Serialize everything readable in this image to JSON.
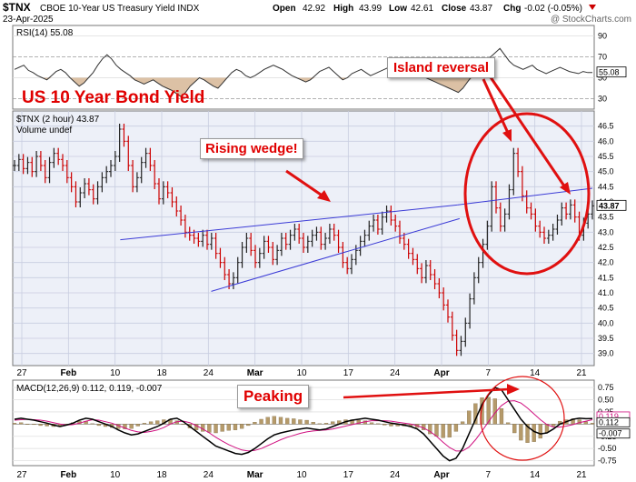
{
  "header": {
    "symbol": "$TNX",
    "name": "CBOE 10-Year US Treasury Yield INDX",
    "date": "23-Apr-2025",
    "open_label": "Open",
    "open": "42.92",
    "high_label": "High",
    "high": "43.99",
    "low_label": "Low",
    "low": "42.61",
    "close_label": "Close",
    "close": "43.87",
    "chg_label": "Chg",
    "chg": "-0.02 (-0.05%)",
    "watermark": "@ StockCharts.com"
  },
  "annotations": {
    "title": "US 10 Year Bond  Yield",
    "rising_wedge": "Rising wedge!",
    "island_reversal": "Island  reversal",
    "peaking": "Peaking"
  },
  "colors": {
    "price": "#cc0000",
    "price_up": "#222222",
    "wedge": "#3b3bd6",
    "annotation": "#e00000",
    "macd": "#000000",
    "signal": "#d01080",
    "hist": "#b59a6a",
    "rsi": "#333333"
  },
  "chart_data": [
    {
      "type": "line",
      "panel": "RSI",
      "label": "RSI(14) 55.08",
      "last": 55.08,
      "yticks": [
        30,
        50,
        70,
        90
      ],
      "ylim": [
        20,
        100
      ],
      "overbought": 70,
      "oversold": 30,
      "values": [
        58,
        60,
        62,
        57,
        55,
        52,
        50,
        48,
        52,
        56,
        58,
        55,
        50,
        46,
        42,
        45,
        50,
        55,
        62,
        68,
        72,
        68,
        62,
        58,
        55,
        52,
        48,
        46,
        44,
        46,
        48,
        45,
        42,
        40,
        38,
        35,
        32,
        36,
        42,
        46,
        50,
        48,
        45,
        42,
        40,
        45,
        50,
        55,
        58,
        56,
        52,
        50,
        52,
        55,
        58,
        60,
        62,
        60,
        58,
        55,
        52,
        50,
        48,
        46,
        48,
        52,
        56,
        58,
        60,
        56,
        52,
        48,
        50,
        54,
        56,
        58,
        55,
        52,
        54,
        56,
        58,
        60,
        62,
        60,
        58,
        56,
        55,
        54,
        52,
        50,
        48,
        46,
        44,
        42,
        40,
        38,
        36,
        40,
        46,
        52,
        58,
        62,
        66,
        70,
        74,
        78,
        72,
        66,
        62,
        60,
        58,
        60,
        62,
        58,
        56,
        54,
        56,
        58,
        60,
        58,
        56,
        55,
        54,
        56,
        55,
        55.08
      ]
    },
    {
      "type": "line",
      "panel": "price",
      "label": "$TNX (2 hour) 43.87",
      "volume_label": "Volume undef",
      "last": 43.87,
      "ylim": [
        38.6,
        47.0
      ],
      "yticks": [
        39.0,
        39.5,
        40.0,
        40.5,
        41.0,
        41.5,
        42.0,
        42.5,
        43.0,
        43.5,
        44.0,
        44.5,
        45.0,
        45.5,
        46.0,
        46.5
      ],
      "x_tick_labels": [
        "27",
        "Feb",
        "10",
        "18",
        "24",
        "Mar",
        "10",
        "17",
        "24",
        "Apr",
        "7",
        "14",
        "21"
      ],
      "values": [
        45.2,
        45.4,
        45.1,
        45.3,
        45.0,
        45.5,
        45.2,
        44.8,
        45.3,
        45.6,
        45.4,
        45.2,
        44.8,
        44.5,
        44.0,
        44.3,
        44.6,
        44.4,
        44.1,
        44.5,
        44.8,
        45.0,
        45.2,
        45.5,
        46.4,
        46.0,
        45.2,
        44.5,
        44.8,
        45.3,
        45.6,
        45.2,
        44.6,
        44.1,
        44.5,
        44.3,
        44.0,
        43.7,
        43.4,
        43.0,
        42.9,
        42.8,
        42.7,
        42.9,
        42.6,
        42.8,
        42.3,
        42.0,
        41.6,
        41.3,
        41.5,
        42.0,
        42.5,
        42.8,
        42.4,
        42.0,
        42.3,
        42.7,
        42.5,
        42.1,
        42.4,
        42.8,
        42.6,
        42.9,
        43.1,
        42.8,
        42.5,
        42.7,
        42.9,
        43.0,
        42.6,
        42.8,
        43.1,
        42.9,
        42.5,
        42.0,
        41.8,
        42.1,
        42.4,
        42.7,
        42.9,
        43.2,
        43.4,
        43.1,
        43.5,
        43.7,
        43.4,
        43.2,
        42.8,
        42.6,
        42.3,
        42.1,
        41.8,
        41.5,
        41.9,
        41.6,
        41.3,
        41.0,
        40.6,
        40.2,
        39.6,
        39.1,
        39.4,
        40.0,
        40.8,
        41.5,
        42.0,
        42.6,
        43.2,
        44.5,
        43.8,
        43.2,
        43.6,
        44.4,
        45.6,
        45.0,
        44.2,
        43.8,
        43.6,
        43.2,
        43.0,
        42.8,
        42.9,
        43.1,
        43.4,
        43.8,
        43.6,
        43.9,
        43.5,
        42.9,
        43.3,
        43.6,
        43.87
      ],
      "wedge": {
        "upper": [
          [
            43,
            42.75
          ],
          [
            180,
            43.9
          ]
        ],
        "lower": [
          [
            80,
            41.05
          ],
          [
            181,
            43.45
          ]
        ],
        "extension": [
          [
            180,
            43.9
          ],
          [
            235,
            44.45
          ]
        ]
      }
    },
    {
      "type": "line",
      "panel": "MACD",
      "label": "MACD(12,26,9) 0.112, 0.119, -0.007",
      "series": [
        {
          "name": "MACD",
          "last": 0.112
        },
        {
          "name": "signal",
          "last": 0.119
        },
        {
          "name": "histogram",
          "last": -0.007
        }
      ],
      "ylim": [
        -0.85,
        0.9
      ],
      "yticks": [
        -0.75,
        -0.5,
        -0.25,
        0.0,
        0.25,
        0.5,
        0.75
      ],
      "macd": [
        0.1,
        0.12,
        0.1,
        0.08,
        0.05,
        0.02,
        -0.02,
        -0.05,
        -0.02,
        0.02,
        0.08,
        0.12,
        0.1,
        0.05,
        0.0,
        -0.05,
        -0.12,
        -0.18,
        -0.22,
        -0.2,
        -0.15,
        -0.1,
        -0.05,
        0.02,
        0.1,
        0.12,
        0.05,
        -0.05,
        -0.15,
        -0.25,
        -0.35,
        -0.45,
        -0.5,
        -0.55,
        -0.6,
        -0.62,
        -0.58,
        -0.5,
        -0.4,
        -0.3,
        -0.22,
        -0.18,
        -0.15,
        -0.12,
        -0.1,
        -0.08,
        -0.1,
        -0.12,
        -0.1,
        -0.05,
        0.0,
        0.05,
        0.08,
        0.1,
        0.12,
        0.1,
        0.08,
        0.05,
        0.02,
        0.0,
        -0.02,
        -0.05,
        -0.1,
        -0.2,
        -0.35,
        -0.5,
        -0.65,
        -0.75,
        -0.7,
        -0.5,
        -0.2,
        0.1,
        0.4,
        0.6,
        0.75,
        0.7,
        0.5,
        0.3,
        0.1,
        -0.05,
        -0.15,
        -0.2,
        -0.18,
        -0.1,
        0.0,
        0.05,
        0.1,
        0.12,
        0.11,
        0.112
      ],
      "signal": [
        0.08,
        0.09,
        0.1,
        0.09,
        0.08,
        0.06,
        0.03,
        0.0,
        -0.02,
        -0.01,
        0.02,
        0.06,
        0.09,
        0.08,
        0.05,
        0.02,
        -0.03,
        -0.08,
        -0.13,
        -0.16,
        -0.17,
        -0.15,
        -0.12,
        -0.07,
        0.0,
        0.05,
        0.06,
        0.03,
        -0.03,
        -0.1,
        -0.18,
        -0.27,
        -0.35,
        -0.42,
        -0.48,
        -0.53,
        -0.55,
        -0.54,
        -0.5,
        -0.44,
        -0.38,
        -0.32,
        -0.27,
        -0.23,
        -0.19,
        -0.16,
        -0.14,
        -0.13,
        -0.12,
        -0.1,
        -0.07,
        -0.04,
        -0.01,
        0.02,
        0.05,
        0.07,
        0.07,
        0.07,
        0.06,
        0.04,
        0.02,
        0.0,
        -0.03,
        -0.08,
        -0.15,
        -0.25,
        -0.37,
        -0.48,
        -0.55,
        -0.55,
        -0.47,
        -0.32,
        -0.14,
        0.05,
        0.23,
        0.38,
        0.47,
        0.48,
        0.43,
        0.33,
        0.21,
        0.09,
        -0.01,
        -0.06,
        -0.06,
        -0.04,
        -0.01,
        0.03,
        0.06,
        0.09,
        0.119
      ]
    }
  ]
}
